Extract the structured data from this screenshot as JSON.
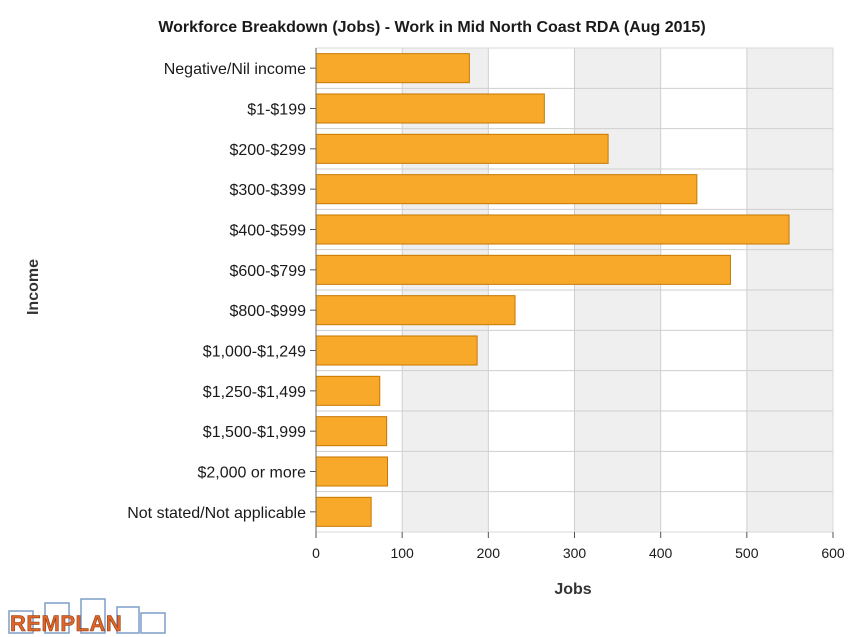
{
  "chart_data": {
    "type": "bar",
    "orientation": "horizontal",
    "title": "Workforce Breakdown (Jobs) - Work in Mid North Coast RDA (Aug 2015)",
    "xlabel": "Jobs",
    "ylabel": "Income",
    "xlim": [
      0,
      600
    ],
    "xticks": [
      "0",
      "100",
      "200",
      "300",
      "400",
      "500",
      "600"
    ],
    "grid": true,
    "legend": "none",
    "categories": [
      "Negative/Nil income",
      "$1-$199",
      "$200-$299",
      "$300-$399",
      "$400-$599",
      "$600-$799",
      "$800-$999",
      "$1,000-$1,249",
      "$1,250-$1,499",
      "$1,500-$1,999",
      "$2,000 or more",
      "Not stated/Not applicable"
    ],
    "values": [
      178,
      265,
      339,
      442,
      549,
      481,
      231,
      187,
      74,
      82,
      83,
      64
    ],
    "colors": {
      "bar_fill": "#f8a92a",
      "bar_stroke": "#c77800",
      "alt_band": "#efefef",
      "grid": "#cfcfcf"
    }
  },
  "logo": {
    "text": "REMPLAN",
    "colors": {
      "fill": "#e0662a",
      "stroke": "#7f9ec9"
    }
  }
}
